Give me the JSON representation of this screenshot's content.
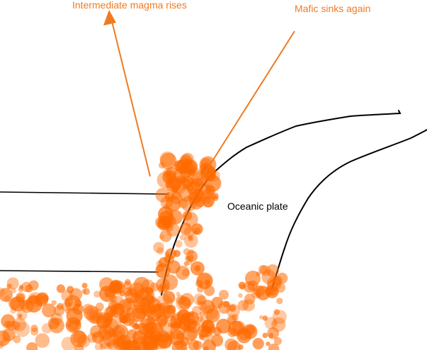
{
  "labels": {
    "intermediate": "Intermediate magma rises",
    "mafic": "Mafic sinks again",
    "oceanic": "Oceanic plate"
  },
  "colors": {
    "annotation": "#f07a22",
    "magma": "#ff6a00",
    "line": "#000000",
    "background": "#ffffff"
  },
  "arrows": [
    {
      "name": "intermediate-arrow",
      "head": "triangle"
    },
    {
      "name": "mafic-pointer-line",
      "head": "none"
    }
  ]
}
